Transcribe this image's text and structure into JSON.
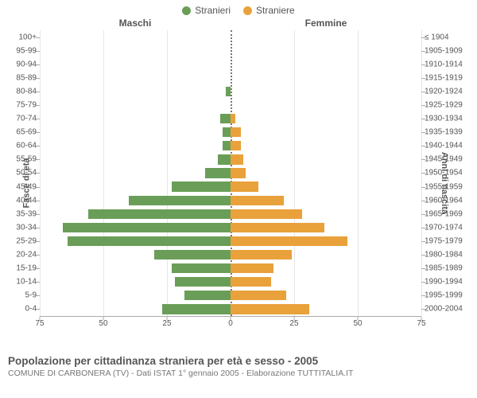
{
  "legend": {
    "male": {
      "label": "Stranieri",
      "color": "#6a9e58"
    },
    "female": {
      "label": "Straniere",
      "color": "#e9a13b"
    }
  },
  "headers": {
    "male": "Maschi",
    "female": "Femmine"
  },
  "ylabels": {
    "left": "Fasce di età",
    "right": "Anni di nascita"
  },
  "axis": {
    "xmax": 75,
    "xticks_left": [
      75,
      50,
      25,
      0
    ],
    "xticks_right": [
      0,
      25,
      50,
      75
    ],
    "gridline_step": 25,
    "grid_color": "#e6e6e6",
    "axis_color": "#aaaaaa"
  },
  "bars": [
    {
      "age": "100+",
      "birth": "≤ 1904",
      "m": 0,
      "f": 0
    },
    {
      "age": "95-99",
      "birth": "1905-1909",
      "m": 0,
      "f": 0
    },
    {
      "age": "90-94",
      "birth": "1910-1914",
      "m": 0,
      "f": 0
    },
    {
      "age": "85-89",
      "birth": "1915-1919",
      "m": 0,
      "f": 0
    },
    {
      "age": "80-84",
      "birth": "1920-1924",
      "m": 2,
      "f": 0
    },
    {
      "age": "75-79",
      "birth": "1925-1929",
      "m": 0,
      "f": 0
    },
    {
      "age": "70-74",
      "birth": "1930-1934",
      "m": 4,
      "f": 2
    },
    {
      "age": "65-69",
      "birth": "1935-1939",
      "m": 3,
      "f": 4
    },
    {
      "age": "60-64",
      "birth": "1940-1944",
      "m": 3,
      "f": 4
    },
    {
      "age": "55-59",
      "birth": "1945-1949",
      "m": 5,
      "f": 5
    },
    {
      "age": "50-54",
      "birth": "1950-1954",
      "m": 10,
      "f": 6
    },
    {
      "age": "45-49",
      "birth": "1955-1959",
      "m": 23,
      "f": 11
    },
    {
      "age": "40-44",
      "birth": "1960-1964",
      "m": 40,
      "f": 21
    },
    {
      "age": "35-39",
      "birth": "1965-1969",
      "m": 56,
      "f": 28
    },
    {
      "age": "30-34",
      "birth": "1970-1974",
      "m": 66,
      "f": 37
    },
    {
      "age": "25-29",
      "birth": "1975-1979",
      "m": 64,
      "f": 46
    },
    {
      "age": "20-24",
      "birth": "1980-1984",
      "m": 30,
      "f": 24
    },
    {
      "age": "15-19",
      "birth": "1985-1989",
      "m": 23,
      "f": 17
    },
    {
      "age": "10-14",
      "birth": "1990-1994",
      "m": 22,
      "f": 16
    },
    {
      "age": "5-9",
      "birth": "1995-1999",
      "m": 18,
      "f": 22
    },
    {
      "age": "0-4",
      "birth": "2000-2004",
      "m": 27,
      "f": 31
    }
  ],
  "title": "Popolazione per cittadinanza straniera per età e sesso - 2005",
  "subtitle": "COMUNE DI CARBONERA (TV) - Dati ISTAT 1° gennaio 2005 - Elaborazione TUTTITALIA.IT",
  "style": {
    "title_fontsize": 13.5,
    "subtitle_fontsize": 10.5,
    "label_fontsize": 10,
    "background_color": "#ffffff",
    "bar_height_pct": 72
  }
}
